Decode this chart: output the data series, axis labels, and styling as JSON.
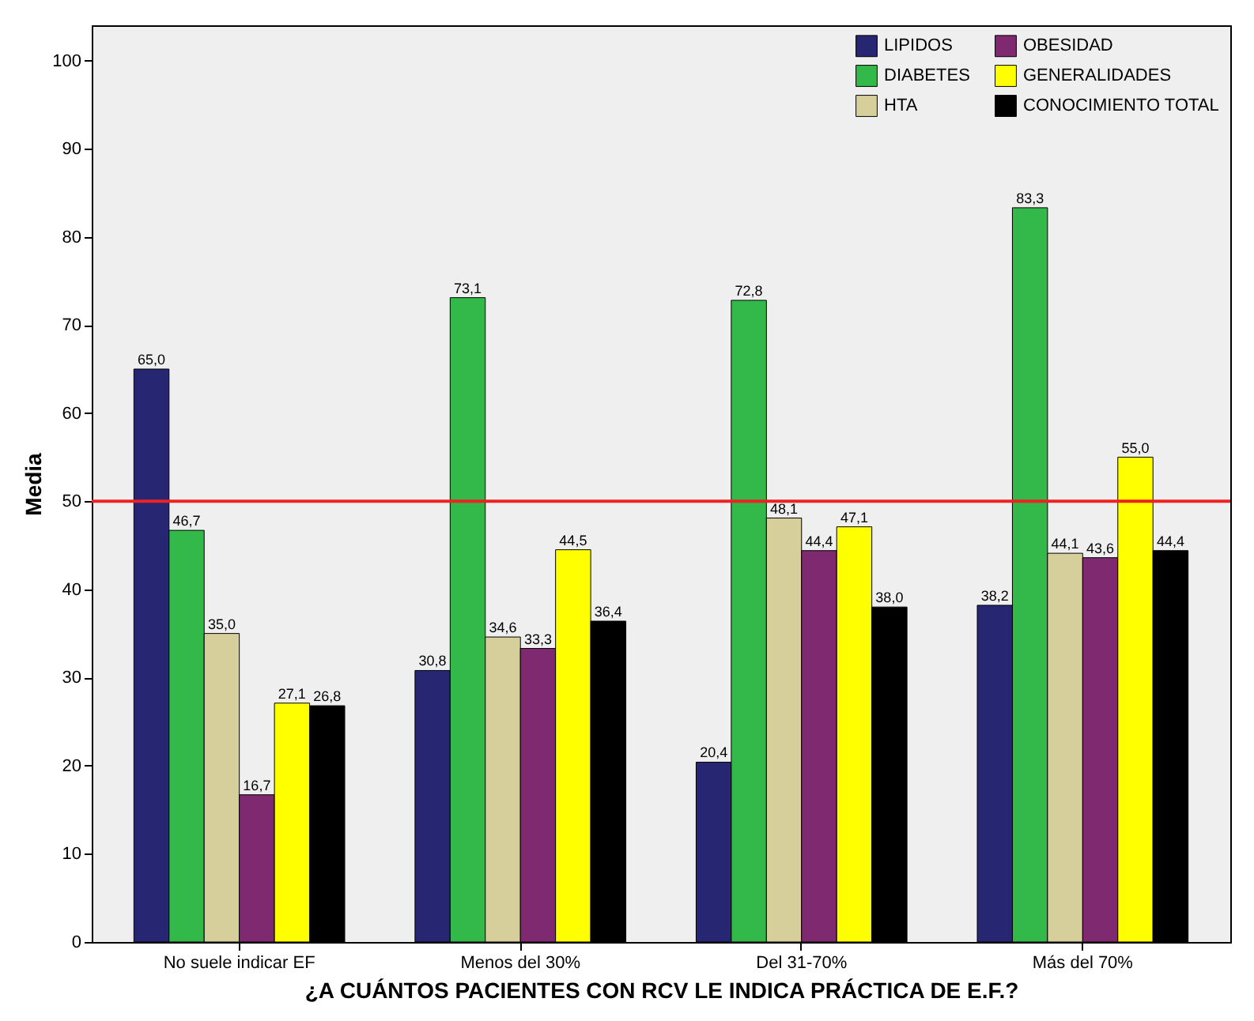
{
  "chart_data": {
    "type": "bar",
    "xlabel": "¿A CUÁNTOS PACIENTES CON RCV LE INDICA PRÁCTICA DE E.F.?",
    "ylabel": "Media",
    "categories": [
      "No suele indicar EF",
      "Menos del 30%",
      "Del 31-70%",
      "Más del 70%"
    ],
    "series": [
      {
        "name": "LIPIDOS",
        "color": "#262673",
        "values": [
          65.0,
          30.8,
          20.4,
          38.2
        ],
        "value_labels": [
          "65,0",
          "30,8",
          "20,4",
          "38,2"
        ]
      },
      {
        "name": "DIABETES",
        "color": "#33b84a",
        "values": [
          46.7,
          73.1,
          72.8,
          83.3
        ],
        "value_labels": [
          "46,7",
          "73,1",
          "72,8",
          "83,3"
        ]
      },
      {
        "name": "HTA",
        "color": "#d6cf9c",
        "values": [
          35.0,
          34.6,
          48.1,
          44.1
        ],
        "value_labels": [
          "35,0",
          "34,6",
          "48,1",
          "44,1"
        ]
      },
      {
        "name": "OBESIDAD",
        "color": "#7f2a70",
        "values": [
          16.7,
          33.3,
          44.4,
          43.6
        ],
        "value_labels": [
          "16,7",
          "33,3",
          "44,4",
          "43,6"
        ]
      },
      {
        "name": "GENERALIDADES",
        "color": "#ffff00",
        "values": [
          27.1,
          44.5,
          47.1,
          55.0
        ],
        "value_labels": [
          "27,1",
          "44,5",
          "47,1",
          "55,0"
        ]
      },
      {
        "name": "CONOCIMIENTO TOTAL",
        "color": "#000000",
        "values": [
          26.8,
          36.4,
          38.0,
          44.4
        ],
        "value_labels": [
          "26,8",
          "36,4",
          "38,0",
          "44,4"
        ]
      }
    ],
    "ylim": [
      0,
      104
    ],
    "yticks": [
      0,
      10,
      20,
      30,
      40,
      50,
      60,
      70,
      80,
      90,
      100
    ],
    "grid": false,
    "legend": "top right",
    "ref_lines": [
      {
        "axis": "y",
        "value": 50,
        "color": "#ee2222"
      }
    ]
  }
}
